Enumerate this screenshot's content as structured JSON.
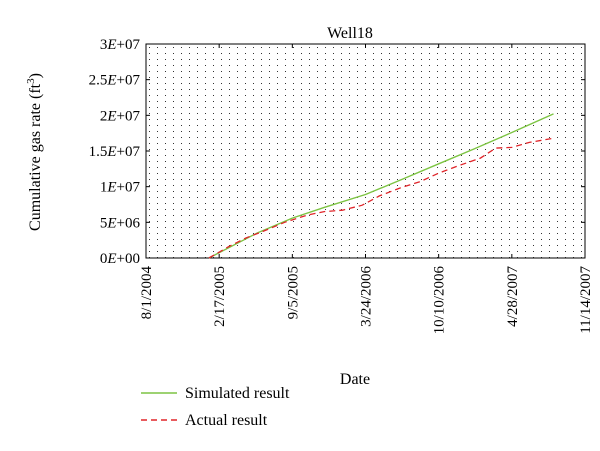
{
  "chart_data": {
    "type": "line",
    "title": "Well18",
    "xlabel": "Date",
    "ylabel_main": "Cumulative gas rate (ft",
    "ylabel_sup": "3",
    "ylabel_close": ")",
    "x_tick_labels": [
      "8/1/2004",
      "2/17/2005",
      "9/5/2005",
      "3/24/2006",
      "10/10/2006",
      "4/28/2007",
      "11/14/2007"
    ],
    "x_ticks": [
      "2004-08-01",
      "2005-02-17",
      "2005-09-05",
      "2006-03-24",
      "2006-10-10",
      "2007-04-28",
      "2007-11-14"
    ],
    "xlim": [
      "2004-08-01",
      "2007-11-14"
    ],
    "y_tick_labels": [
      {
        "mant": "0",
        "exp": "+00"
      },
      {
        "mant": "5",
        "exp": "+06"
      },
      {
        "mant": "1",
        "exp": "+07"
      },
      {
        "mant": "1.5",
        "exp": "+07"
      },
      {
        "mant": "2",
        "exp": "+07"
      },
      {
        "mant": "2.5",
        "exp": "+07"
      },
      {
        "mant": "3",
        "exp": "+07"
      }
    ],
    "y_ticks": [
      0,
      5000000,
      10000000,
      15000000,
      20000000,
      25000000,
      30000000
    ],
    "ylim": [
      0,
      30000000
    ],
    "grid": "dotted",
    "legend_position": "bottom-left",
    "series": [
      {
        "name": "Simulated result",
        "color": "#7dc443",
        "dash": "solid",
        "points": [
          [
            "2005-01-20",
            0
          ],
          [
            "2005-06-01",
            3500000
          ],
          [
            "2005-09-05",
            5600000
          ],
          [
            "2005-12-01",
            7100000
          ],
          [
            "2006-03-24",
            8900000
          ],
          [
            "2006-07-01",
            11000000
          ],
          [
            "2006-10-10",
            13200000
          ],
          [
            "2007-01-15",
            15300000
          ],
          [
            "2007-04-28",
            17600000
          ],
          [
            "2007-08-20",
            20200000
          ]
        ]
      },
      {
        "name": "Actual result",
        "color": "#e0252a",
        "dash": "dashed",
        "points": [
          [
            "2005-01-20",
            0
          ],
          [
            "2005-03-15",
            1600000
          ],
          [
            "2005-05-01",
            2800000
          ],
          [
            "2005-06-20",
            3800000
          ],
          [
            "2005-08-15",
            5000000
          ],
          [
            "2005-10-15",
            6000000
          ],
          [
            "2005-12-01",
            6500000
          ],
          [
            "2006-01-20",
            6700000
          ],
          [
            "2006-03-15",
            7400000
          ],
          [
            "2006-05-01",
            8700000
          ],
          [
            "2006-07-01",
            9900000
          ],
          [
            "2006-08-20",
            10700000
          ],
          [
            "2006-10-10",
            11900000
          ],
          [
            "2006-12-01",
            12900000
          ],
          [
            "2007-02-01",
            14000000
          ],
          [
            "2007-03-15",
            15400000
          ],
          [
            "2007-04-28",
            15500000
          ],
          [
            "2007-06-15",
            16200000
          ],
          [
            "2007-08-20",
            16800000
          ]
        ]
      }
    ]
  }
}
